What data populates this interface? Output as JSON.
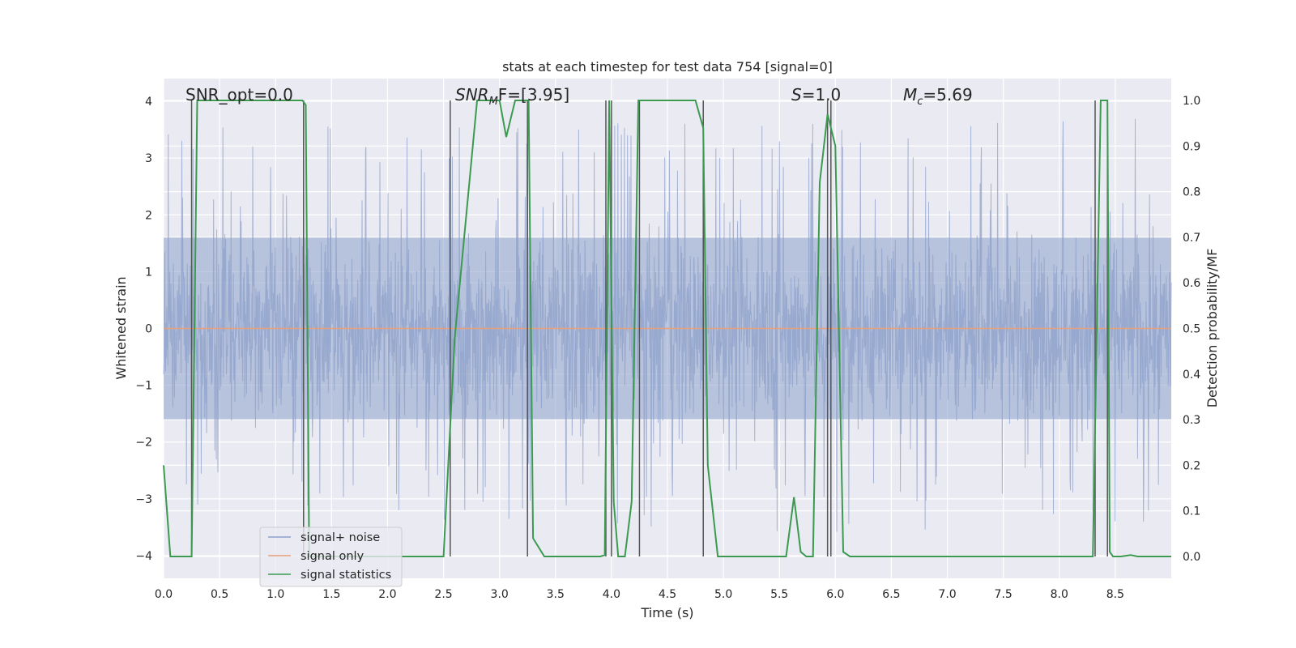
{
  "chart_data": {
    "type": "line",
    "title": "stats at each timestep for test data 754 [signal=0]",
    "xlabel": "Time (s)",
    "ylabel": "Whitened strain",
    "y2label": "Detection probability/MF",
    "xlim": [
      0,
      9.0
    ],
    "ylim": [
      -4.4,
      4.4
    ],
    "y2lim": [
      -0.048,
      1.048
    ],
    "x_ticks": [
      "0.0",
      "0.5",
      "1.0",
      "1.5",
      "2.0",
      "2.5",
      "3.0",
      "3.5",
      "4.0",
      "4.5",
      "5.0",
      "5.5",
      "6.0",
      "6.5",
      "7.0",
      "7.5",
      "8.0",
      "8.5"
    ],
    "y_ticks": [
      "4",
      "3",
      "2",
      "1",
      "0",
      "−1",
      "−2",
      "−3",
      "−4"
    ],
    "y2_ticks": [
      "1.0",
      "0.9",
      "0.8",
      "0.7",
      "0.6",
      "0.5",
      "0.4",
      "0.3",
      "0.2",
      "0.1",
      "0.0"
    ],
    "grid": true,
    "legend_position": "lower-left",
    "annotations": {
      "snr_opt": "SNR_opt=0.0",
      "snr_mf_sym": "SNR",
      "snr_mf_sub": "M",
      "snr_mf_rest": "F=[3.95]",
      "s_sym": "S",
      "s_rest": "=1.0",
      "mc_sym": "M",
      "mc_sub": "c",
      "mc_rest": "=5.69"
    },
    "series": [
      {
        "name": "signal+ noise",
        "color": "#8da0cb",
        "description_level": "noise band",
        "typical_range": [
          -1.6,
          1.6
        ],
        "peak_range": [
          -3.6,
          3.7
        ]
      },
      {
        "name": "signal only",
        "color": "#e8a07a",
        "x": [
          0,
          9.0
        ],
        "y": [
          0,
          0
        ]
      },
      {
        "name": "signal statistics",
        "color": "#3c9a50",
        "axis": "right",
        "x": [
          0.0,
          0.06,
          0.15,
          0.2,
          0.25,
          0.3,
          0.5,
          1.0,
          1.24,
          1.27,
          1.3,
          1.5,
          2.0,
          2.4,
          2.5,
          2.6,
          2.8,
          3.0,
          3.06,
          3.14,
          3.26,
          3.3,
          3.4,
          3.5,
          3.7,
          3.9,
          3.94,
          3.98,
          4.02,
          4.06,
          4.12,
          4.18,
          4.24,
          4.3,
          4.5,
          4.75,
          4.82,
          4.86,
          4.95,
          5.0,
          5.2,
          5.4,
          5.56,
          5.63,
          5.69,
          5.74,
          5.8,
          5.86,
          5.93,
          6.0,
          6.07,
          6.13,
          6.18,
          6.5,
          7.0,
          7.5,
          8.0,
          8.3,
          8.37,
          8.43,
          8.45,
          8.48,
          8.55,
          8.64,
          8.7,
          9.0
        ],
        "y": [
          0.2,
          0.0,
          0.0,
          0.0,
          0.0,
          1.0,
          1.0,
          1.0,
          1.0,
          0.99,
          0.0,
          0.0,
          0.0,
          0.0,
          0.0,
          0.48,
          1.0,
          1.0,
          0.92,
          1.0,
          1.0,
          0.04,
          0.0,
          0.0,
          0.0,
          0.0,
          0.003,
          1.0,
          0.12,
          0.0,
          0.0,
          0.12,
          1.0,
          1.0,
          1.0,
          1.0,
          0.94,
          0.2,
          0.0,
          0.0,
          0.0,
          0.0,
          0.0,
          0.13,
          0.01,
          0.0,
          0.0,
          0.82,
          0.97,
          0.9,
          0.01,
          0.0,
          0.0,
          0.0,
          0.0,
          0.0,
          0.0,
          0.0,
          1.0,
          1.0,
          0.01,
          0.0,
          0.0,
          0.003,
          0.0,
          0.0
        ]
      }
    ],
    "vertical_markers": [
      0.25,
      1.25,
      2.56,
      3.25,
      3.95,
      4.0,
      4.25,
      4.82,
      5.93,
      5.96,
      8.32,
      8.43
    ]
  }
}
